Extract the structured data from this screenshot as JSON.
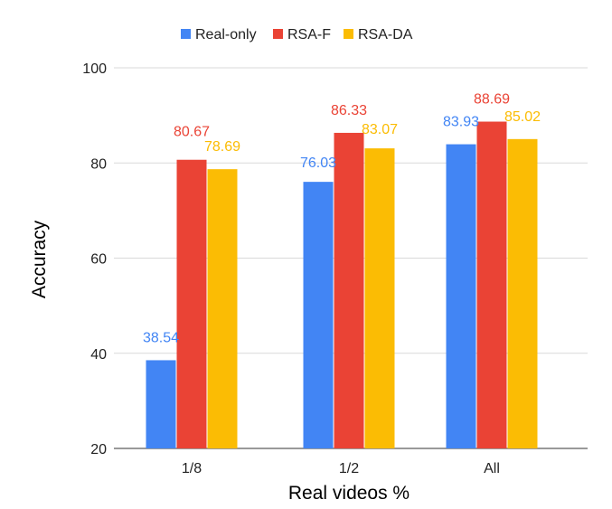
{
  "chart_data": {
    "type": "bar",
    "title": "",
    "xlabel": "Real videos %",
    "ylabel": "Accuracy",
    "ylim": [
      20,
      100
    ],
    "yticks": [
      20,
      40,
      60,
      80,
      100
    ],
    "categories": [
      "1/8",
      "1/2",
      "All"
    ],
    "series": [
      {
        "name": "Real-only",
        "color": "#4285F4",
        "values": [
          38.54,
          76.03,
          83.93
        ]
      },
      {
        "name": "RSA-F",
        "color": "#EA4335",
        "values": [
          80.67,
          86.33,
          88.69
        ]
      },
      {
        "name": "RSA-DA",
        "color": "#FBBC04",
        "values": [
          78.69,
          83.07,
          85.02
        ]
      }
    ],
    "grid": true,
    "legend_position": "top"
  }
}
